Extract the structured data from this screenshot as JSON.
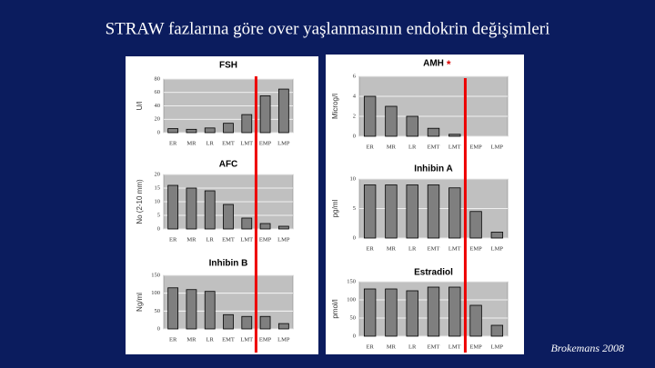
{
  "title": "STRAW fazlarına göre over yaşlanmasının endokrin değişimleri",
  "source": "Brokemans 2008",
  "chart_data": [
    {
      "type": "bar",
      "title": "FSH",
      "ylabel": "U/l",
      "categories": [
        "ER",
        "MR",
        "LR",
        "EMT",
        "LMT",
        "EMP",
        "LMP"
      ],
      "values": [
        6,
        5,
        7,
        14,
        27,
        55,
        65
      ],
      "ylim": [
        0,
        80
      ],
      "yticks": [
        0,
        20,
        40,
        60,
        80
      ],
      "color": "#7f7f7f",
      "grid": true
    },
    {
      "type": "bar",
      "title": "AFC",
      "ylabel": "No (2-10 mm)",
      "categories": [
        "ER",
        "MR",
        "LR",
        "EMT",
        "LMT",
        "EMP",
        "LMP"
      ],
      "values": [
        16,
        15,
        14,
        9,
        4,
        2,
        1
      ],
      "ylim": [
        0,
        20
      ],
      "yticks": [
        0,
        5,
        10,
        15,
        20
      ],
      "color": "#7f7f7f",
      "grid": true
    },
    {
      "type": "bar",
      "title": "Inhibin B",
      "ylabel": "Ng/ml",
      "categories": [
        "ER",
        "MR",
        "LR",
        "EMT",
        "LMT",
        "EMP",
        "LMP"
      ],
      "values": [
        115,
        110,
        105,
        40,
        35,
        35,
        15
      ],
      "ylim": [
        0,
        150
      ],
      "yticks": [
        0,
        50,
        100,
        150
      ],
      "color": "#7f7f7f",
      "grid": true
    },
    {
      "type": "bar",
      "title": "AMH",
      "annotation": "*",
      "ylabel": "Microg/l",
      "categories": [
        "ER",
        "MR",
        "LR",
        "EMT",
        "LMT",
        "EMP",
        "LMP"
      ],
      "values": [
        4,
        3,
        2,
        0.8,
        0.2,
        0,
        0
      ],
      "ylim": [
        0,
        6
      ],
      "yticks": [
        0,
        2,
        4,
        6
      ],
      "color": "#7f7f7f",
      "grid": true
    },
    {
      "type": "bar",
      "title": "Inhibin A",
      "ylabel": "pg/ml",
      "categories": [
        "ER",
        "MR",
        "LR",
        "EMT",
        "LMT",
        "EMP",
        "LMP"
      ],
      "values": [
        9,
        9,
        9,
        9,
        8.5,
        4.5,
        1
      ],
      "ylim": [
        0,
        10
      ],
      "yticks": [
        0,
        5,
        10
      ],
      "color": "#7f7f7f",
      "grid": true
    },
    {
      "type": "bar",
      "title": "Estradiol",
      "ylabel": "pmol/l",
      "categories": [
        "ER",
        "MR",
        "LR",
        "EMT",
        "LMT",
        "EMP",
        "LMP"
      ],
      "values": [
        130,
        130,
        125,
        135,
        135,
        85,
        30
      ],
      "ylim": [
        0,
        150
      ],
      "yticks": [
        0,
        50,
        100,
        150
      ],
      "color": "#7f7f7f",
      "grid": true
    }
  ]
}
